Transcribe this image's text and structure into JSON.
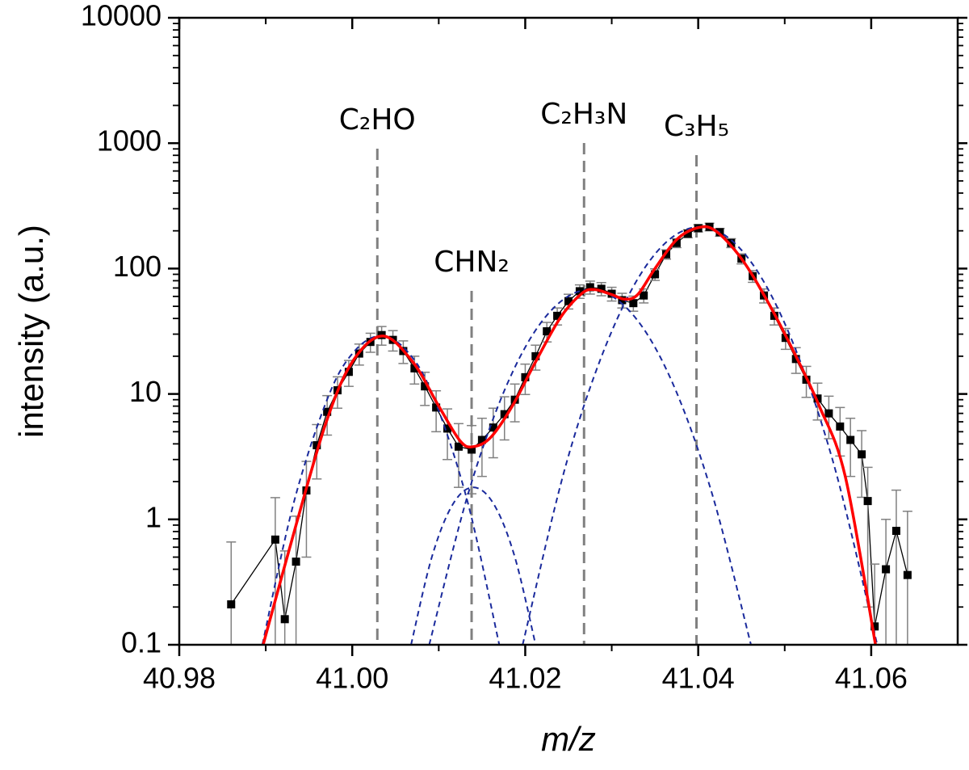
{
  "chart_data": {
    "type": "scatter",
    "xlabel": "m/z",
    "ylabel": "intensity (a.u.)",
    "xlim": [
      40.98,
      41.07
    ],
    "ylim": [
      0.1,
      10000
    ],
    "yscale": "log",
    "xticks": [
      40.98,
      {
        "value": 41,
        "label": "41.00"
      },
      41.02,
      41.04,
      41.06
    ],
    "yticks": [
      0.1,
      1,
      10,
      100,
      1000,
      10000
    ],
    "series": [
      {
        "color": "#000000",
        "error_color": "#808080",
        "x": [
          40.986,
          40.9911,
          40.9922,
          40.9935,
          40.9947,
          40.9959,
          40.9971,
          40.9983,
          40.9996,
          41.0008,
          41.0021,
          41.0034,
          41.0047,
          41.0059,
          41.0072,
          41.0084,
          41.0097,
          41.011,
          41.0123,
          41.0138,
          41.015,
          41.0163,
          41.0176,
          41.0188,
          41.02,
          41.0212,
          41.0225,
          41.0237,
          41.025,
          41.0263,
          41.0275,
          41.0288,
          41.03,
          41.0312,
          41.0325,
          41.0337,
          41.035,
          41.0363,
          41.0375,
          41.0388,
          41.04,
          41.0413,
          41.0425,
          41.0438,
          41.045,
          41.0463,
          41.0476,
          41.0488,
          41.0501,
          41.0513,
          41.0525,
          41.0538,
          41.0551,
          41.0564,
          41.0576,
          41.0589,
          41.0596,
          41.0604,
          41.0617,
          41.0629,
          41.0642
        ],
        "values": [
          0.21,
          0.69,
          0.16,
          0.46,
          1.7,
          3.9,
          7.2,
          10.7,
          15,
          21,
          26,
          29.5,
          27,
          22,
          16,
          11.5,
          7.8,
          5.3,
          3.8,
          3.6,
          4.3,
          5.4,
          6.9,
          9,
          13.6,
          20,
          31.6,
          42,
          55,
          66,
          71,
          69,
          63,
          56,
          53,
          61,
          90,
          130,
          160,
          190,
          210,
          215,
          195,
          160,
          120,
          87,
          61,
          42,
          28,
          19,
          13,
          9.2,
          7,
          5.5,
          4.3,
          3.3,
          1.4,
          0.14,
          0.4,
          0.81,
          0.36
        ],
        "errors": [
          0.45,
          0.8,
          0.4,
          0.6,
          1.2,
          1.8,
          2.5,
          3,
          3.5,
          4,
          4.5,
          5,
          5,
          4.5,
          4,
          3.4,
          2.8,
          2.3,
          2,
          2,
          2.1,
          2.3,
          2.6,
          3,
          3.7,
          4.5,
          5.6,
          6.5,
          7.4,
          8.1,
          8.4,
          8.3,
          7.9,
          7.5,
          7.3,
          7.8,
          9.5,
          11,
          13,
          14,
          14,
          15,
          14,
          13,
          11,
          9.3,
          7.8,
          6.5,
          5.3,
          4.4,
          3.6,
          3,
          2.6,
          2.3,
          2.1,
          1.8,
          1.2,
          0.3,
          0.6,
          0.9,
          0.8
        ]
      }
    ],
    "fit": {
      "color": "#ff0000",
      "x": [
        40.9897,
        40.9935,
        40.997,
        41.0,
        41.0035,
        41.007,
        41.01,
        41.0125,
        41.014,
        41.016,
        41.0185,
        41.021,
        41.024,
        41.0265,
        41.028,
        41.03,
        41.0315,
        41.033,
        41.035,
        41.0375,
        41.04,
        41.042,
        41.045,
        41.048,
        41.051,
        41.054,
        41.057,
        41.0605
      ],
      "values": [
        0.1,
        0.9,
        6,
        18,
        29,
        18,
        8,
        4.2,
        3.8,
        4.5,
        8,
        17,
        40,
        63,
        68,
        62,
        57,
        62,
        100,
        170,
        212,
        200,
        120,
        55,
        22,
        8,
        2.2,
        0.1
      ]
    },
    "components": [
      {
        "color": "#1a2a9c",
        "x": [
          40.9896,
          40.9933,
          40.9973,
          41.0003,
          41.0033,
          41.0063,
          41.0093,
          41.0133,
          41.017
        ],
        "values": [
          0.1,
          1.41,
          9.8,
          22.1,
          29,
          22.1,
          9.8,
          1.41,
          0.1
        ]
      },
      {
        "color": "#1a2a9c",
        "x": [
          41.0068,
          41.0092,
          41.0116,
          41.014,
          41.0164,
          41.0188,
          41.0212
        ],
        "values": [
          0.1,
          0.5,
          1.31,
          1.8,
          1.31,
          0.5,
          0.1
        ]
      },
      {
        "color": "#1a2a9c",
        "x": [
          41.0089,
          41.0135,
          41.0182,
          41.0228,
          41.0275,
          41.0322,
          41.0368,
          41.0415,
          41.0461
        ],
        "values": [
          0.1,
          1.69,
          13.3,
          44.8,
          68,
          44.8,
          13.3,
          1.69,
          0.1
        ]
      },
      {
        "color": "#1a2a9c",
        "x": [
          41.0197,
          41.0248,
          41.03,
          41.0351,
          41.0402,
          41.0453,
          41.0504,
          41.0556,
          41.0607
        ],
        "values": [
          0.1,
          2.87,
          31.6,
          133,
          215,
          133,
          31.6,
          2.87,
          0.1
        ]
      }
    ],
    "references": {
      "color": "#808080",
      "items": [
        {
          "label": "C₂HO",
          "x": 41.0029
        },
        {
          "label": "CHN₂",
          "x": 41.0138
        },
        {
          "label": "C₂H₃N",
          "x": 41.0268
        },
        {
          "label": "C₃H₅",
          "x": 41.0398
        }
      ]
    }
  }
}
